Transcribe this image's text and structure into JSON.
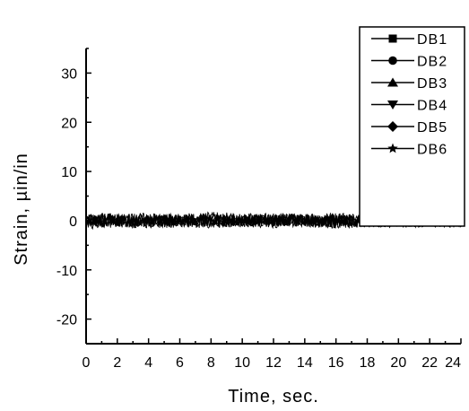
{
  "chart_data": {
    "type": "line",
    "title": "",
    "xlabel": "Time, sec.",
    "ylabel": "Strain, µin/in",
    "xlim": [
      0,
      24
    ],
    "ylim": [
      -25,
      35
    ],
    "x_ticks": [
      0,
      2,
      4,
      6,
      8,
      10,
      12,
      14,
      16,
      18,
      20,
      22,
      24
    ],
    "y_ticks": [
      -20,
      -10,
      0,
      10,
      20,
      30
    ],
    "grid": false,
    "legend_position": "top-right",
    "series": [
      {
        "name": "DB1",
        "marker": "square",
        "x": [
          0,
          4,
          8,
          12,
          16,
          20,
          24
        ],
        "values": [
          0.3,
          0.1,
          0.5,
          0.0,
          0.2,
          -0.1,
          0.2
        ]
      },
      {
        "name": "DB2",
        "marker": "circle",
        "x": [
          0,
          4,
          8,
          12,
          16,
          20,
          24
        ],
        "values": [
          -0.2,
          0.2,
          0.0,
          0.3,
          -0.2,
          0.1,
          0.0
        ]
      },
      {
        "name": "DB3",
        "marker": "triangle-up",
        "x": [
          0,
          4,
          8,
          12,
          16,
          20,
          24
        ],
        "values": [
          0.1,
          -0.3,
          0.2,
          -0.1,
          0.3,
          0.0,
          -0.2
        ]
      },
      {
        "name": "DB4",
        "marker": "triangle-down",
        "x": [
          0,
          4,
          8,
          12,
          16,
          20,
          24
        ],
        "values": [
          -0.4,
          0.0,
          -0.2,
          0.1,
          -0.3,
          0.2,
          0.1
        ]
      },
      {
        "name": "DB5",
        "marker": "diamond",
        "x": [
          0,
          4,
          8,
          12,
          16,
          20,
          24
        ],
        "values": [
          0.0,
          0.3,
          -0.1,
          0.2,
          0.0,
          -0.2,
          0.3
        ]
      },
      {
        "name": "DB6",
        "marker": "star",
        "x": [
          0,
          4,
          8,
          12,
          16,
          20,
          24
        ],
        "values": [
          0.2,
          -0.1,
          0.1,
          -0.2,
          0.1,
          0.1,
          -0.1
        ]
      }
    ]
  }
}
